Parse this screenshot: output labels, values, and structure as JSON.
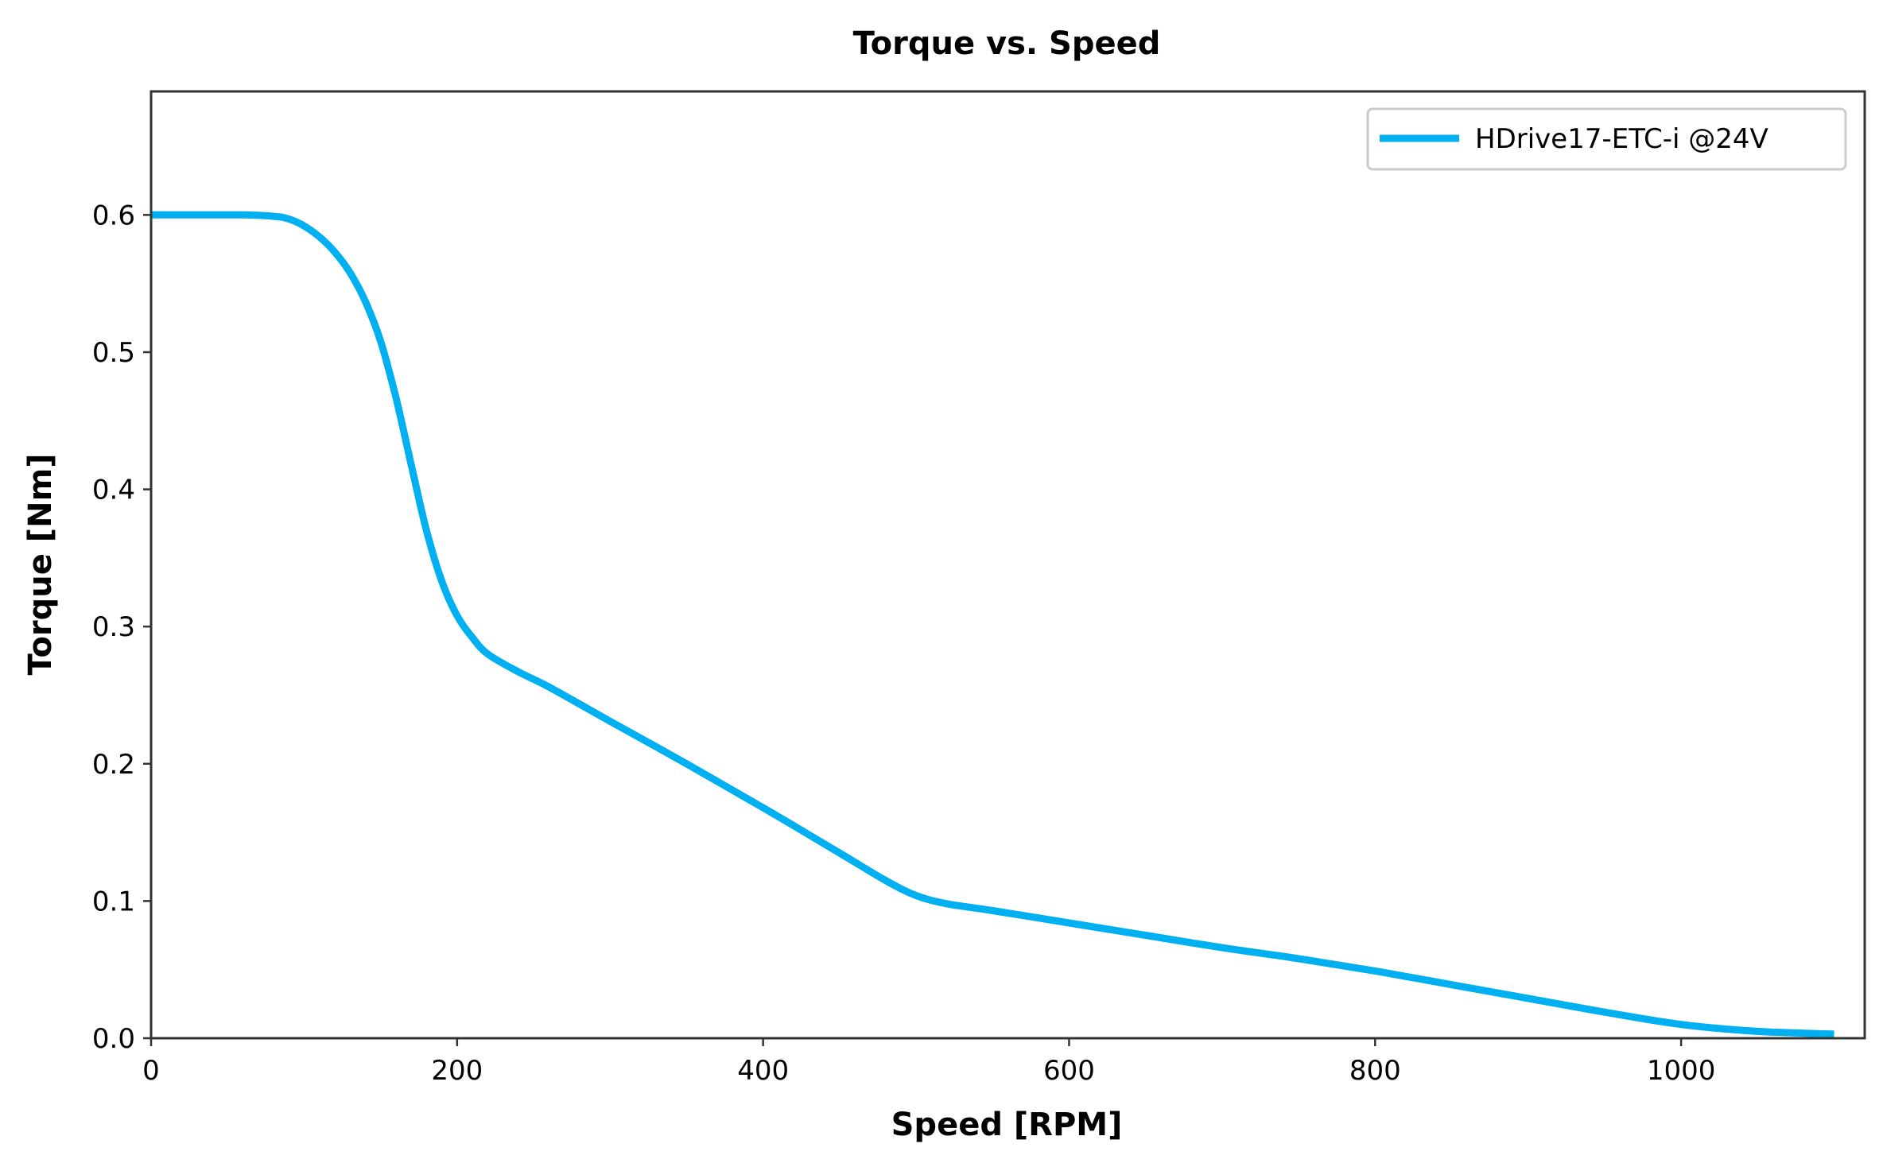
{
  "chart_data": {
    "type": "line",
    "title": "Torque vs. Speed",
    "xlabel": "Speed [RPM]",
    "ylabel": "Torque [Nm]",
    "xlim": [
      0,
      1120
    ],
    "ylim": [
      0,
      0.69
    ],
    "xticks": [
      0,
      200,
      400,
      600,
      800,
      1000
    ],
    "xtick_labels": [
      "0",
      "200",
      "400",
      "600",
      "800",
      "1000"
    ],
    "yticks": [
      0.0,
      0.1,
      0.2,
      0.3,
      0.4,
      0.5,
      0.6
    ],
    "ytick_labels": [
      "0.0",
      "0.1",
      "0.2",
      "0.3",
      "0.4",
      "0.5",
      "0.6"
    ],
    "grid": false,
    "legend_position": "top-right",
    "series": [
      {
        "name": "HDrive17-ETC-i @24V",
        "color": "#00b0f0",
        "x": [
          0,
          20,
          40,
          60,
          80,
          90,
          100,
          110,
          120,
          130,
          140,
          150,
          160,
          170,
          180,
          190,
          200,
          210,
          220,
          240,
          260,
          300,
          350,
          400,
          450,
          480,
          500,
          520,
          550,
          600,
          650,
          700,
          750,
          800,
          850,
          900,
          950,
          1000,
          1050,
          1100
        ],
        "y": [
          0.6,
          0.6,
          0.6,
          0.6,
          0.599,
          0.597,
          0.592,
          0.584,
          0.573,
          0.558,
          0.537,
          0.508,
          0.467,
          0.418,
          0.37,
          0.333,
          0.308,
          0.292,
          0.28,
          0.267,
          0.256,
          0.231,
          0.2,
          0.168,
          0.135,
          0.115,
          0.104,
          0.098,
          0.093,
          0.084,
          0.075,
          0.066,
          0.058,
          0.049,
          0.039,
          0.029,
          0.019,
          0.01,
          0.005,
          0.003
        ]
      }
    ]
  }
}
